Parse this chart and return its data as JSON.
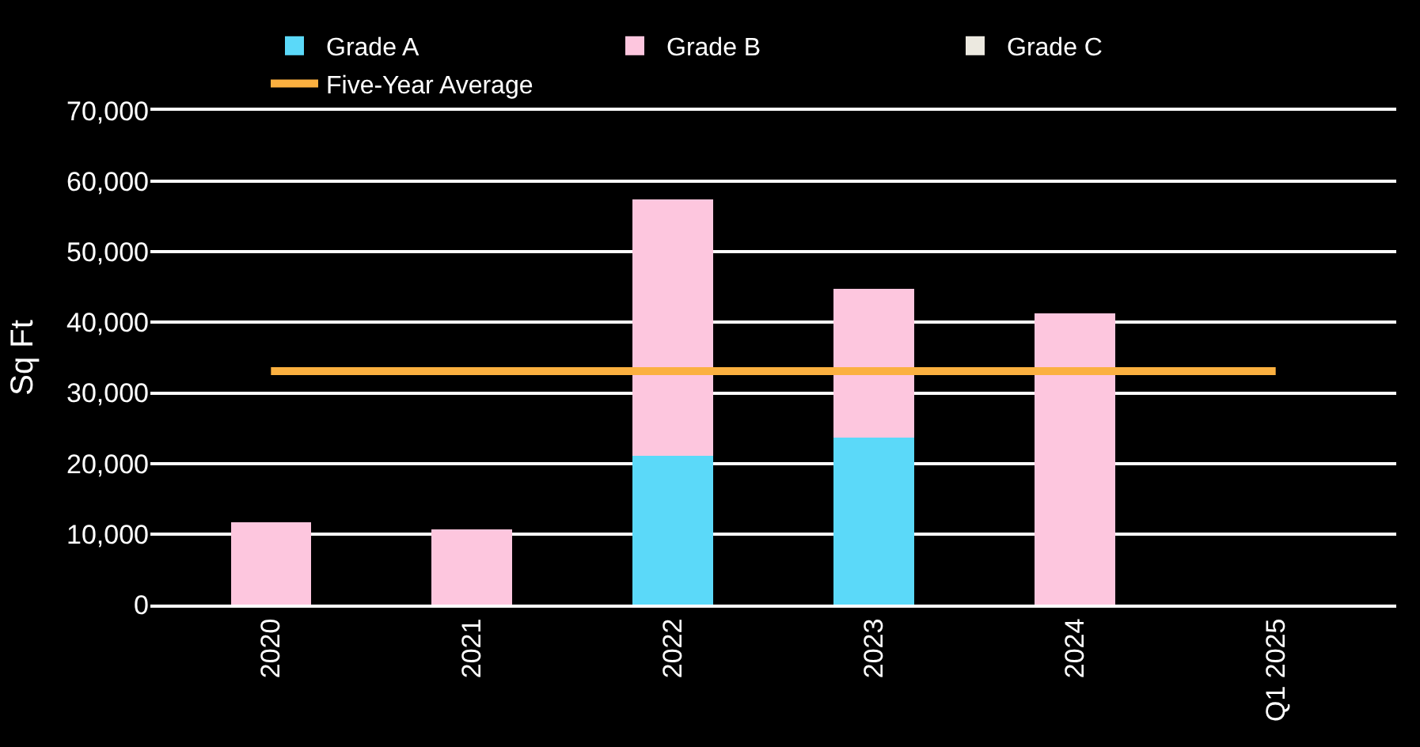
{
  "chart_data": {
    "type": "bar",
    "stacked": true,
    "ylabel": "Sq Ft",
    "categories": [
      "2020",
      "2021",
      "2022",
      "2023",
      "2024",
      "Q1 2025"
    ],
    "series": [
      {
        "name": "Grade A",
        "color": "#5bd9f9",
        "values": [
          null,
          null,
          21100,
          23700,
          null,
          null
        ]
      },
      {
        "name": "Grade B",
        "color": "#fdc6de",
        "values": [
          11700,
          10700,
          36300,
          21100,
          41300,
          null
        ]
      },
      {
        "name": "Grade C",
        "color": "#ece9e0",
        "values": [
          null,
          null,
          null,
          null,
          null,
          null
        ]
      },
      {
        "name": "Five-Year Average",
        "type": "line",
        "color": "#fbb040",
        "values": [
          33100,
          33100,
          33100,
          33100,
          33100,
          33100
        ]
      }
    ],
    "ylim": [
      0,
      70000
    ],
    "yticks": [
      {
        "value": 0,
        "label": "0"
      },
      {
        "value": 10000,
        "label": "10,000"
      },
      {
        "value": 20000,
        "label": "20,000"
      },
      {
        "value": 30000,
        "label": "30,000"
      },
      {
        "value": 40000,
        "label": "40,000"
      },
      {
        "value": 50000,
        "label": "50,000"
      },
      {
        "value": 60000,
        "label": "60,000"
      },
      {
        "value": 70000,
        "label": "70,000"
      }
    ],
    "grid": "y",
    "legend": "top",
    "marker": "none",
    "line_style": "solid"
  }
}
